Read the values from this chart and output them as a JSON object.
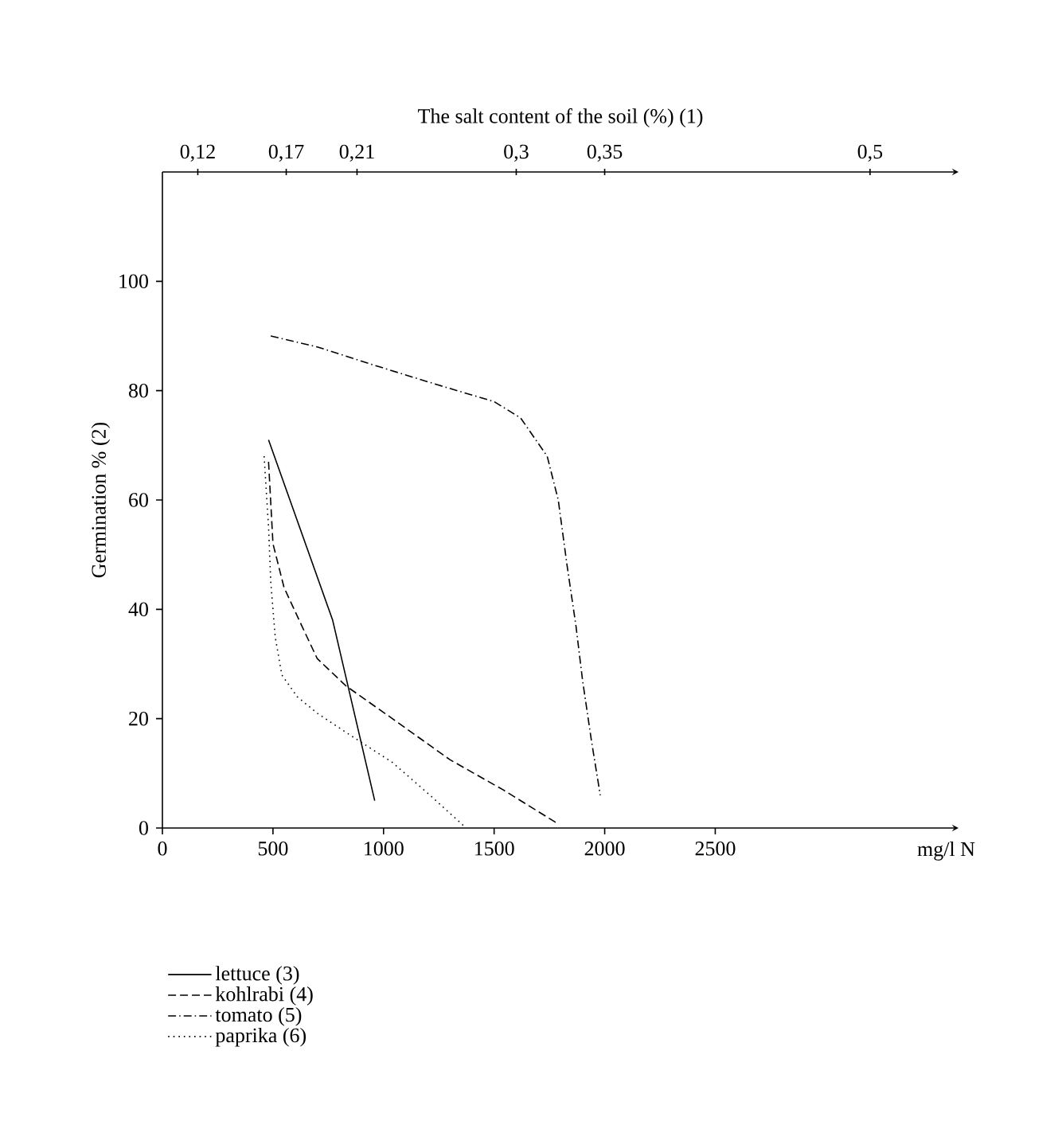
{
  "chart_data": {
    "type": "line",
    "x2label": "The salt content of the soil (%) (1)",
    "ylabel": "Germination % (2)",
    "xlabel": "mg/l  N",
    "xlim": [
      0,
      3600
    ],
    "xticks": [
      0,
      500,
      1000,
      1500,
      2000,
      2500
    ],
    "ylim": [
      0,
      120
    ],
    "yticks": [
      0,
      20,
      40,
      60,
      80,
      100
    ],
    "x2lim": [
      0.1,
      0.55
    ],
    "x2ticks": [
      {
        "value": 0.12,
        "label": "0,12"
      },
      {
        "value": 0.17,
        "label": "0,17"
      },
      {
        "value": 0.21,
        "label": "0,21"
      },
      {
        "value": 0.3,
        "label": "0,3"
      },
      {
        "value": 0.35,
        "label": "0,35"
      },
      {
        "value": 0.5,
        "label": "0,5"
      }
    ],
    "legend": "bottom left",
    "marker": "none",
    "grid": false,
    "series": [
      {
        "name": "lettuce (3)",
        "color": "#000000",
        "line_style": "solid",
        "x": [
          480,
          770,
          960
        ],
        "values": [
          71,
          38,
          5
        ]
      },
      {
        "name": "kohlrabi (4)",
        "color": "#000000",
        "line_style": "dashed",
        "x": [
          480,
          500,
          550,
          630,
          700,
          830,
          1040,
          1300,
          1540,
          1780
        ],
        "values": [
          67,
          52,
          44,
          37,
          31,
          26,
          20,
          12.5,
          7,
          1
        ]
      },
      {
        "name": "tomato (5)",
        "color": "#000000",
        "line_style": "dashdot",
        "x": [
          490,
          700,
          970,
          1250,
          1500,
          1620,
          1740,
          1790,
          1830,
          1870,
          1900,
          1940,
          1980
        ],
        "values": [
          90,
          88,
          84.5,
          81,
          78,
          75,
          68,
          60,
          48,
          37,
          27,
          16,
          6
        ]
      },
      {
        "name": "paprika (6)",
        "color": "#000000",
        "line_style": "dotted",
        "x": [
          460,
          480,
          490,
          510,
          540,
          610,
          700,
          830,
          1040,
          1210,
          1360
        ],
        "values": [
          68,
          55,
          45,
          35,
          28,
          24,
          21,
          17.5,
          12,
          6,
          0.5
        ]
      }
    ]
  }
}
